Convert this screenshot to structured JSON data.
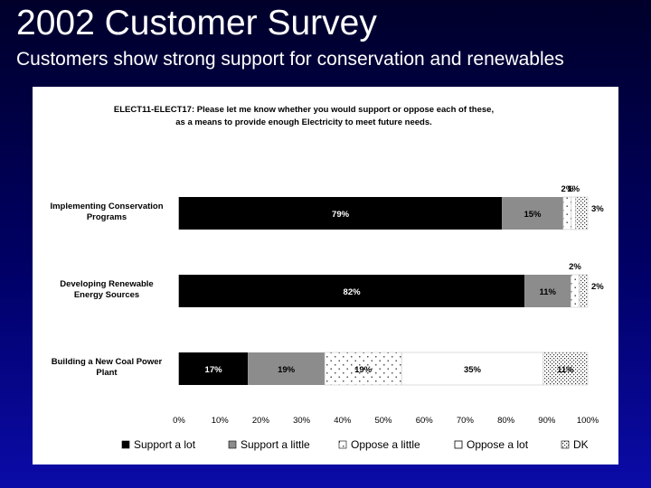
{
  "slide": {
    "title": "2002 Customer Survey",
    "subtitle": "Customers show strong support for conservation and renewables"
  },
  "chart_data": {
    "type": "bar",
    "orientation": "horizontal",
    "stacked": true,
    "question_line1": "ELECT11-ELECT17: Please let me know whether you would support or oppose each of these,",
    "question_line2": "as a means to provide enough Electricity to meet future needs.",
    "categories": [
      "Implementing Conservation Programs",
      "Developing Renewable Energy Sources",
      "Building a New Coal Power Plant"
    ],
    "category_lines": [
      [
        "Implementing Conservation",
        "Programs"
      ],
      [
        "Developing Renewable",
        "Energy Sources"
      ],
      [
        "Building a New Coal Power",
        "Plant"
      ]
    ],
    "series": [
      {
        "name": "Support a lot",
        "values": [
          79,
          82,
          17
        ],
        "labels": [
          "79%",
          "82%",
          "17%"
        ],
        "color": "#000000",
        "pattern": "solid"
      },
      {
        "name": "Support a little",
        "values": [
          15,
          11,
          19
        ],
        "labels": [
          "15%",
          "11%",
          "19%"
        ],
        "color": "#8c8c8c",
        "pattern": "solid"
      },
      {
        "name": "Oppose a little",
        "values": [
          2,
          2,
          19
        ],
        "labels": [
          "2%",
          "2%",
          "19%"
        ],
        "color": "#ffffff",
        "pattern": "dots"
      },
      {
        "name": "Oppose a lot",
        "values": [
          1,
          0,
          35
        ],
        "labels": [
          "1%",
          "",
          "35%"
        ],
        "color": "#ffffff",
        "pattern": "none"
      },
      {
        "name": "DK",
        "values": [
          3,
          2,
          11
        ],
        "labels": [
          "3%",
          "2%",
          "11%"
        ],
        "color": "#ffffff",
        "pattern": "dense-dots"
      }
    ],
    "xlim": [
      0,
      100
    ],
    "xticks": [
      "0%",
      "10%",
      "20%",
      "30%",
      "40%",
      "50%",
      "60%",
      "70%",
      "80%",
      "90%",
      "100%"
    ],
    "legend_position": "bottom",
    "grid": false
  }
}
